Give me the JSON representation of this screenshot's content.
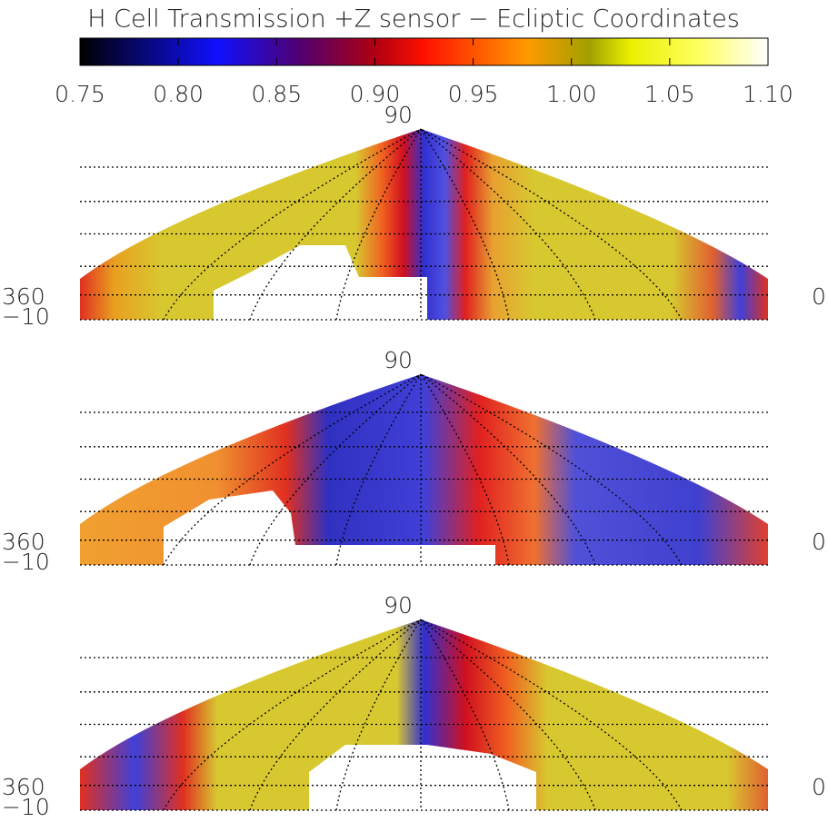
{
  "title": "H Cell Transmission +Z sensor − Ecliptic Coordinates",
  "colorbar": {
    "range": [
      0.75,
      1.1
    ],
    "ticks": [
      0.75,
      {
        "value": 0.8,
        "label": "0.80"
      },
      0.85,
      {
        "value": 0.9,
        "label": "0.90"
      },
      0.95,
      {
        "value": 1.0,
        "label": "1.00"
      },
      1.05,
      {
        "value": 1.1,
        "label": "1.10"
      }
    ]
  },
  "panels": [
    {
      "top_label": "90",
      "left_labels": [
        "360",
        "−10"
      ],
      "right_label": "0"
    },
    {
      "top_label": "90",
      "left_labels": [
        "360",
        "−10"
      ],
      "right_label": "0"
    },
    {
      "top_label": "90",
      "left_labels": [
        "360",
        "−10"
      ],
      "right_label": "0"
    }
  ]
}
